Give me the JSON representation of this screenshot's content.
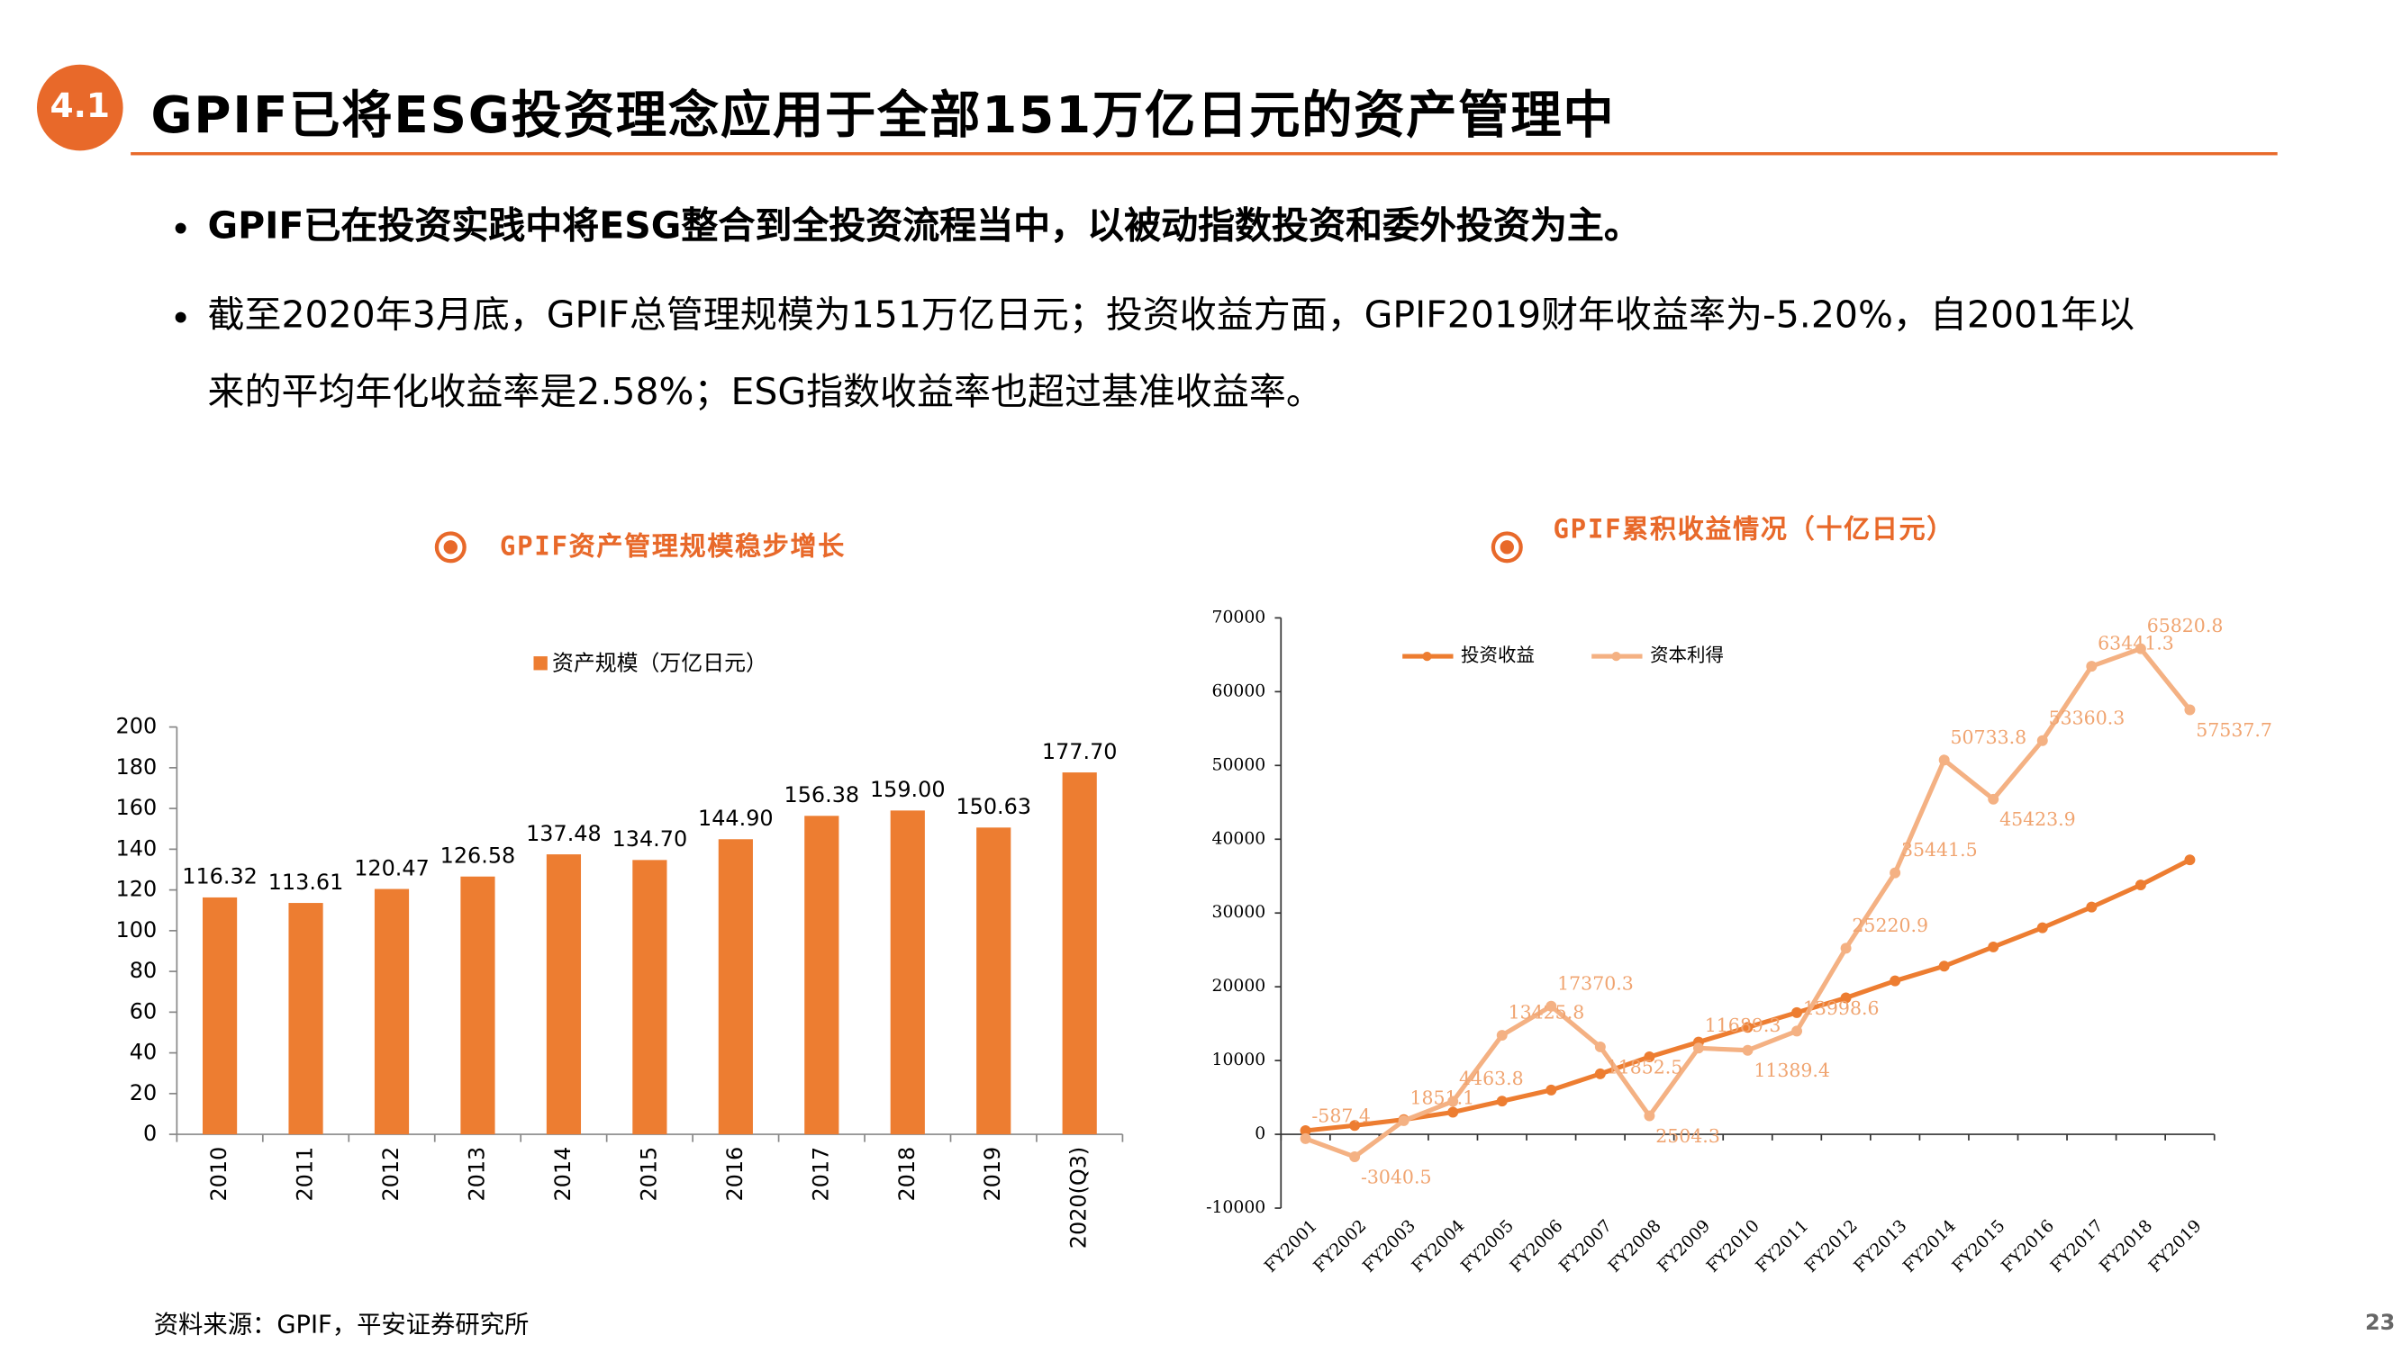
{
  "header": {
    "section": "4.1",
    "title": "GPIF已将ESG投资理念应用于全部151万亿日元的资产管理中"
  },
  "bullets": [
    "GPIF已在投资实践中将ESG整合到全投资流程当中，以被动指数投资和委外投资为主。",
    "截至2020年3月底，GPIF总管理规模为151万亿日元；投资收益方面，GPIF2019财年收益率为-5.20%，自2001年以来的平均年化收益率是2.58%；ESG指数收益率也超过基准收益率。"
  ],
  "chart_data": [
    {
      "type": "bar",
      "title": "GPIF资产管理规模稳步增长",
      "categories": [
        "2010",
        "2011",
        "2012",
        "2013",
        "2014",
        "2015",
        "2016",
        "2017",
        "2018",
        "2019",
        "2020(Q3)"
      ],
      "series": [
        {
          "name": "资产规模（万亿日元）",
          "color": "#ED7D31",
          "values": [
            116.32,
            113.61,
            120.47,
            126.58,
            137.48,
            134.7,
            144.9,
            156.38,
            159.0,
            150.63,
            177.7
          ],
          "value_labels": [
            "116.32",
            "113.61",
            "120.47",
            "126.58",
            "137.48",
            "134.70",
            "144.90",
            "156.38",
            "159.00",
            "150.63",
            "177.70"
          ]
        }
      ],
      "ylim": [
        0,
        200
      ],
      "yticks": [
        0,
        20,
        40,
        60,
        80,
        100,
        120,
        140,
        160,
        180,
        200
      ],
      "legend": "top"
    },
    {
      "type": "line",
      "title": "GPIF累积收益情况（十亿日元）",
      "categories": [
        "FY2001",
        "FY2002",
        "FY2003",
        "FY2004",
        "FY2005",
        "FY2006",
        "FY2007",
        "FY2008",
        "FY2009",
        "FY2010",
        "FY2011",
        "FY2012",
        "FY2013",
        "FY2014",
        "FY2015",
        "FY2016",
        "FY2017",
        "FY2018",
        "FY2019"
      ],
      "series": [
        {
          "name": "投资收益",
          "color": "#ED7D31",
          "values": [
            500,
            1200,
            2000,
            3000,
            4500,
            6000,
            8200,
            10500,
            12500,
            14500,
            16500,
            18500,
            20800,
            22800,
            25400,
            28000,
            30800,
            33800,
            37200
          ]
        },
        {
          "name": "资本利得",
          "color": "#F4B183",
          "data_labels": true,
          "values": [
            -587.4,
            -3040.5,
            1851.1,
            4463.8,
            13425.8,
            17370.3,
            11852.5,
            2504.3,
            11689.3,
            11389.4,
            13998.6,
            25220.9,
            35441.5,
            50733.8,
            45423.9,
            53360.3,
            63441.3,
            65820.8,
            57537.7
          ]
        }
      ],
      "ylim": [
        -10000,
        70000
      ],
      "yticks": [
        -10000,
        0,
        10000,
        20000,
        30000,
        40000,
        50000,
        60000,
        70000
      ],
      "legend": "top-left"
    }
  ],
  "source": "资料来源：GPIF，平安证券研究所",
  "page_number": "23"
}
